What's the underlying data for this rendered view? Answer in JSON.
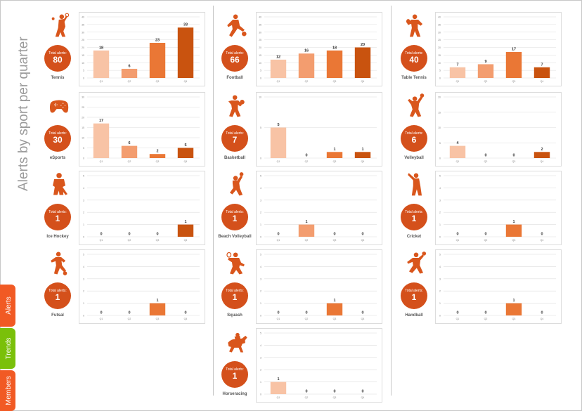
{
  "page": {
    "title": "Alerts by sport per quarter"
  },
  "sidetabs": [
    {
      "label": "Alerts",
      "color": "#f15a24"
    },
    {
      "label": "Trends",
      "color": "#7ac00a"
    },
    {
      "label": "Members",
      "color": "#f15a24"
    }
  ],
  "colors": {
    "q1": "#f8c3a5",
    "q2": "#f39d6f",
    "q3": "#ea7735",
    "q4": "#c9530f",
    "badge": "#d4501b",
    "icon": "#d9561c"
  },
  "total_label": "Total alerts:",
  "chart_data": [
    {
      "type": "bar",
      "sport": "Tennis",
      "icon": "tennis-player-icon",
      "total": "80",
      "categories": [
        "Q1",
        "Q2",
        "Q3",
        "Q4"
      ],
      "values": [
        18,
        6,
        23,
        33
      ],
      "ylim": [
        0,
        40
      ],
      "yticks": [
        0,
        5,
        10,
        15,
        20,
        25,
        30,
        35,
        40
      ],
      "grid": true,
      "title": "",
      "xlabel": "",
      "ylabel": ""
    },
    {
      "type": "bar",
      "sport": "Football",
      "icon": "football-player-icon",
      "total": "66",
      "categories": [
        "Q1",
        "Q2",
        "Q3",
        "Q4"
      ],
      "values": [
        12,
        16,
        18,
        20
      ],
      "ylim": [
        0,
        40
      ],
      "yticks": [
        0,
        5,
        10,
        15,
        20,
        25,
        30,
        35,
        40
      ],
      "grid": true,
      "title": "",
      "xlabel": "",
      "ylabel": ""
    },
    {
      "type": "bar",
      "sport": "Table Tennis",
      "icon": "table-tennis-player-icon",
      "total": "40",
      "categories": [
        "Q1",
        "Q2",
        "Q3",
        "Q4"
      ],
      "values": [
        7,
        9,
        17,
        7
      ],
      "ylim": [
        0,
        40
      ],
      "yticks": [
        0,
        5,
        10,
        15,
        20,
        25,
        30,
        35,
        40
      ],
      "grid": true,
      "title": "",
      "xlabel": "",
      "ylabel": ""
    },
    {
      "type": "bar",
      "sport": "eSports",
      "icon": "gamepad-icon",
      "total": "30",
      "categories": [
        "Q1",
        "Q2",
        "Q3",
        "Q4"
      ],
      "values": [
        17,
        6,
        2,
        5
      ],
      "ylim": [
        0,
        30
      ],
      "yticks": [
        0,
        5,
        10,
        15,
        20,
        25,
        30
      ],
      "grid": true,
      "title": "",
      "xlabel": "",
      "ylabel": ""
    },
    {
      "type": "bar",
      "sport": "Basketball",
      "icon": "basketball-player-icon",
      "total": "7",
      "categories": [
        "Q1",
        "Q2",
        "Q3",
        "Q4"
      ],
      "values": [
        5,
        0,
        1,
        1
      ],
      "ylim": [
        0,
        10
      ],
      "yticks": [
        0,
        5,
        10
      ],
      "grid": true,
      "title": "",
      "xlabel": "",
      "ylabel": ""
    },
    {
      "type": "bar",
      "sport": "Volleyball",
      "icon": "volleyball-player-icon",
      "total": "6",
      "categories": [
        "Q1",
        "Q2",
        "Q3",
        "Q4"
      ],
      "values": [
        4,
        0,
        0,
        2
      ],
      "ylim": [
        0,
        20
      ],
      "yticks": [
        0,
        5,
        10,
        15,
        20
      ],
      "grid": true,
      "title": "",
      "xlabel": "",
      "ylabel": ""
    },
    {
      "type": "bar",
      "sport": "Ice Hockey",
      "icon": "ice-hockey-player-icon",
      "total": "1",
      "categories": [
        "Q1",
        "Q2",
        "Q3",
        "Q4"
      ],
      "values": [
        0,
        0,
        0,
        1
      ],
      "ylim": [
        0,
        5
      ],
      "yticks": [
        0,
        1,
        2,
        3,
        4,
        5
      ],
      "grid": true,
      "title": "",
      "xlabel": "",
      "ylabel": ""
    },
    {
      "type": "bar",
      "sport": "Beach Volleyball",
      "icon": "beach-volleyball-player-icon",
      "total": "1",
      "categories": [
        "Q1",
        "Q2",
        "Q3",
        "Q4"
      ],
      "values": [
        0,
        1,
        0,
        0
      ],
      "ylim": [
        0,
        5
      ],
      "yticks": [
        0,
        1,
        2,
        3,
        4,
        5
      ],
      "grid": true,
      "title": "",
      "xlabel": "",
      "ylabel": ""
    },
    {
      "type": "bar",
      "sport": "Cricket",
      "icon": "cricket-player-icon",
      "total": "1",
      "categories": [
        "Q1",
        "Q2",
        "Q3",
        "Q4"
      ],
      "values": [
        0,
        0,
        1,
        0
      ],
      "ylim": [
        0,
        5
      ],
      "yticks": [
        0,
        1,
        2,
        3,
        4,
        5
      ],
      "grid": true,
      "title": "",
      "xlabel": "",
      "ylabel": ""
    },
    {
      "type": "bar",
      "sport": "Futsal",
      "icon": "futsal-player-icon",
      "total": "1",
      "categories": [
        "Q1",
        "Q2",
        "Q3",
        "Q4"
      ],
      "values": [
        0,
        0,
        1,
        0
      ],
      "ylim": [
        0,
        5
      ],
      "yticks": [
        0,
        1,
        2,
        3,
        4,
        5
      ],
      "grid": true,
      "title": "",
      "xlabel": "",
      "ylabel": ""
    },
    {
      "type": "bar",
      "sport": "Squash",
      "icon": "squash-player-icon",
      "total": "1",
      "categories": [
        "Q1",
        "Q2",
        "Q3",
        "Q4"
      ],
      "values": [
        0,
        0,
        1,
        0
      ],
      "ylim": [
        0,
        5
      ],
      "yticks": [
        0,
        1,
        2,
        3,
        4,
        5
      ],
      "grid": true,
      "title": "",
      "xlabel": "",
      "ylabel": ""
    },
    {
      "type": "bar",
      "sport": "Handball",
      "icon": "handball-player-icon",
      "total": "1",
      "categories": [
        "Q1",
        "Q2",
        "Q3",
        "Q4"
      ],
      "values": [
        0,
        0,
        1,
        0
      ],
      "ylim": [
        0,
        5
      ],
      "yticks": [
        0,
        1,
        2,
        3,
        4,
        5
      ],
      "grid": true,
      "title": "",
      "xlabel": "",
      "ylabel": ""
    },
    {
      "type": "bar",
      "sport": "Horseracing",
      "icon": "horse-racing-icon",
      "total": "1",
      "categories": [
        "Q1",
        "Q2",
        "Q3",
        "Q4"
      ],
      "values": [
        1,
        0,
        0,
        0
      ],
      "ylim": [
        0,
        5
      ],
      "yticks": [
        0,
        1,
        2,
        3,
        4,
        5
      ],
      "grid": true,
      "title": "",
      "xlabel": "",
      "ylabel": ""
    }
  ]
}
